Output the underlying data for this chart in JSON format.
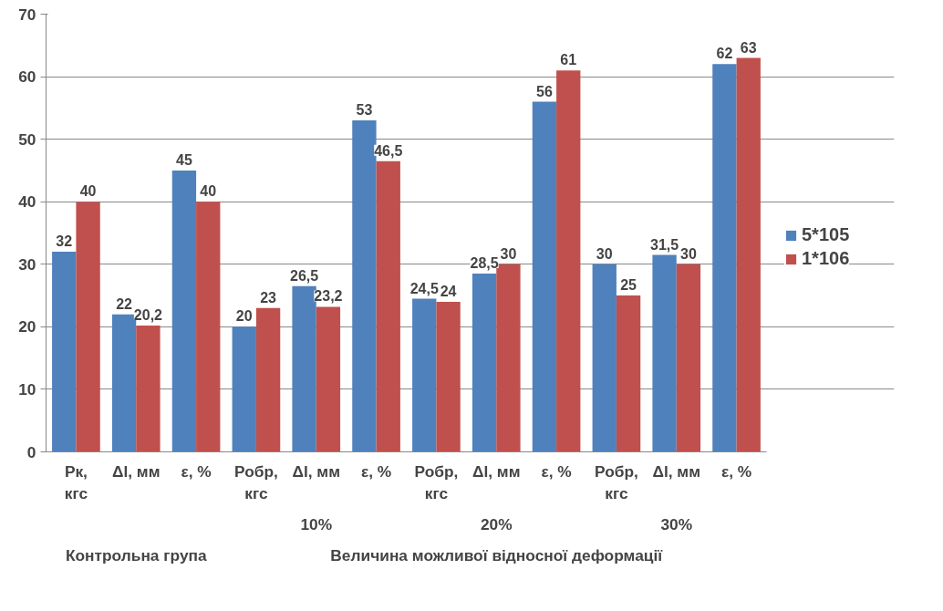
{
  "chart_data": {
    "type": "bar",
    "categories": [
      "Рк,\nкгс",
      "Δl, мм",
      "ε, %",
      "Робр,\nкгс",
      "Δl, мм",
      "ε, %",
      "Робр,\nкгс",
      "Δl, мм",
      "ε, %",
      "Робр,\nкгс",
      "Δl, мм",
      "ε, %"
    ],
    "series": [
      {
        "name": "5*105",
        "color": "#4f81bd",
        "values": [
          32,
          22,
          45,
          20,
          26.5,
          53,
          24.5,
          28.5,
          56,
          30,
          31.5,
          62
        ],
        "value_labels": [
          "32",
          "22",
          "45",
          "20",
          "26,5",
          "53",
          "24,5",
          "28,5",
          "56",
          "30",
          "31,5",
          "62"
        ]
      },
      {
        "name": "1*106",
        "color": "#c0504d",
        "values": [
          40,
          20.2,
          40,
          23,
          23.2,
          46.5,
          24,
          30,
          61,
          25,
          30,
          63
        ],
        "value_labels": [
          "40",
          "20,2",
          "40",
          "23",
          "23,2",
          "46,5",
          "24",
          "30",
          "61",
          "25",
          "30",
          "63"
        ]
      }
    ],
    "annotations": [
      "10%",
      "20%",
      "30%",
      "Контрольна група",
      "Величина можливої відносної деформації"
    ],
    "ylim": [
      0,
      70
    ],
    "yticks": [
      0,
      10,
      20,
      30,
      40,
      50,
      60,
      70
    ],
    "grid": "y",
    "legend": "right"
  }
}
